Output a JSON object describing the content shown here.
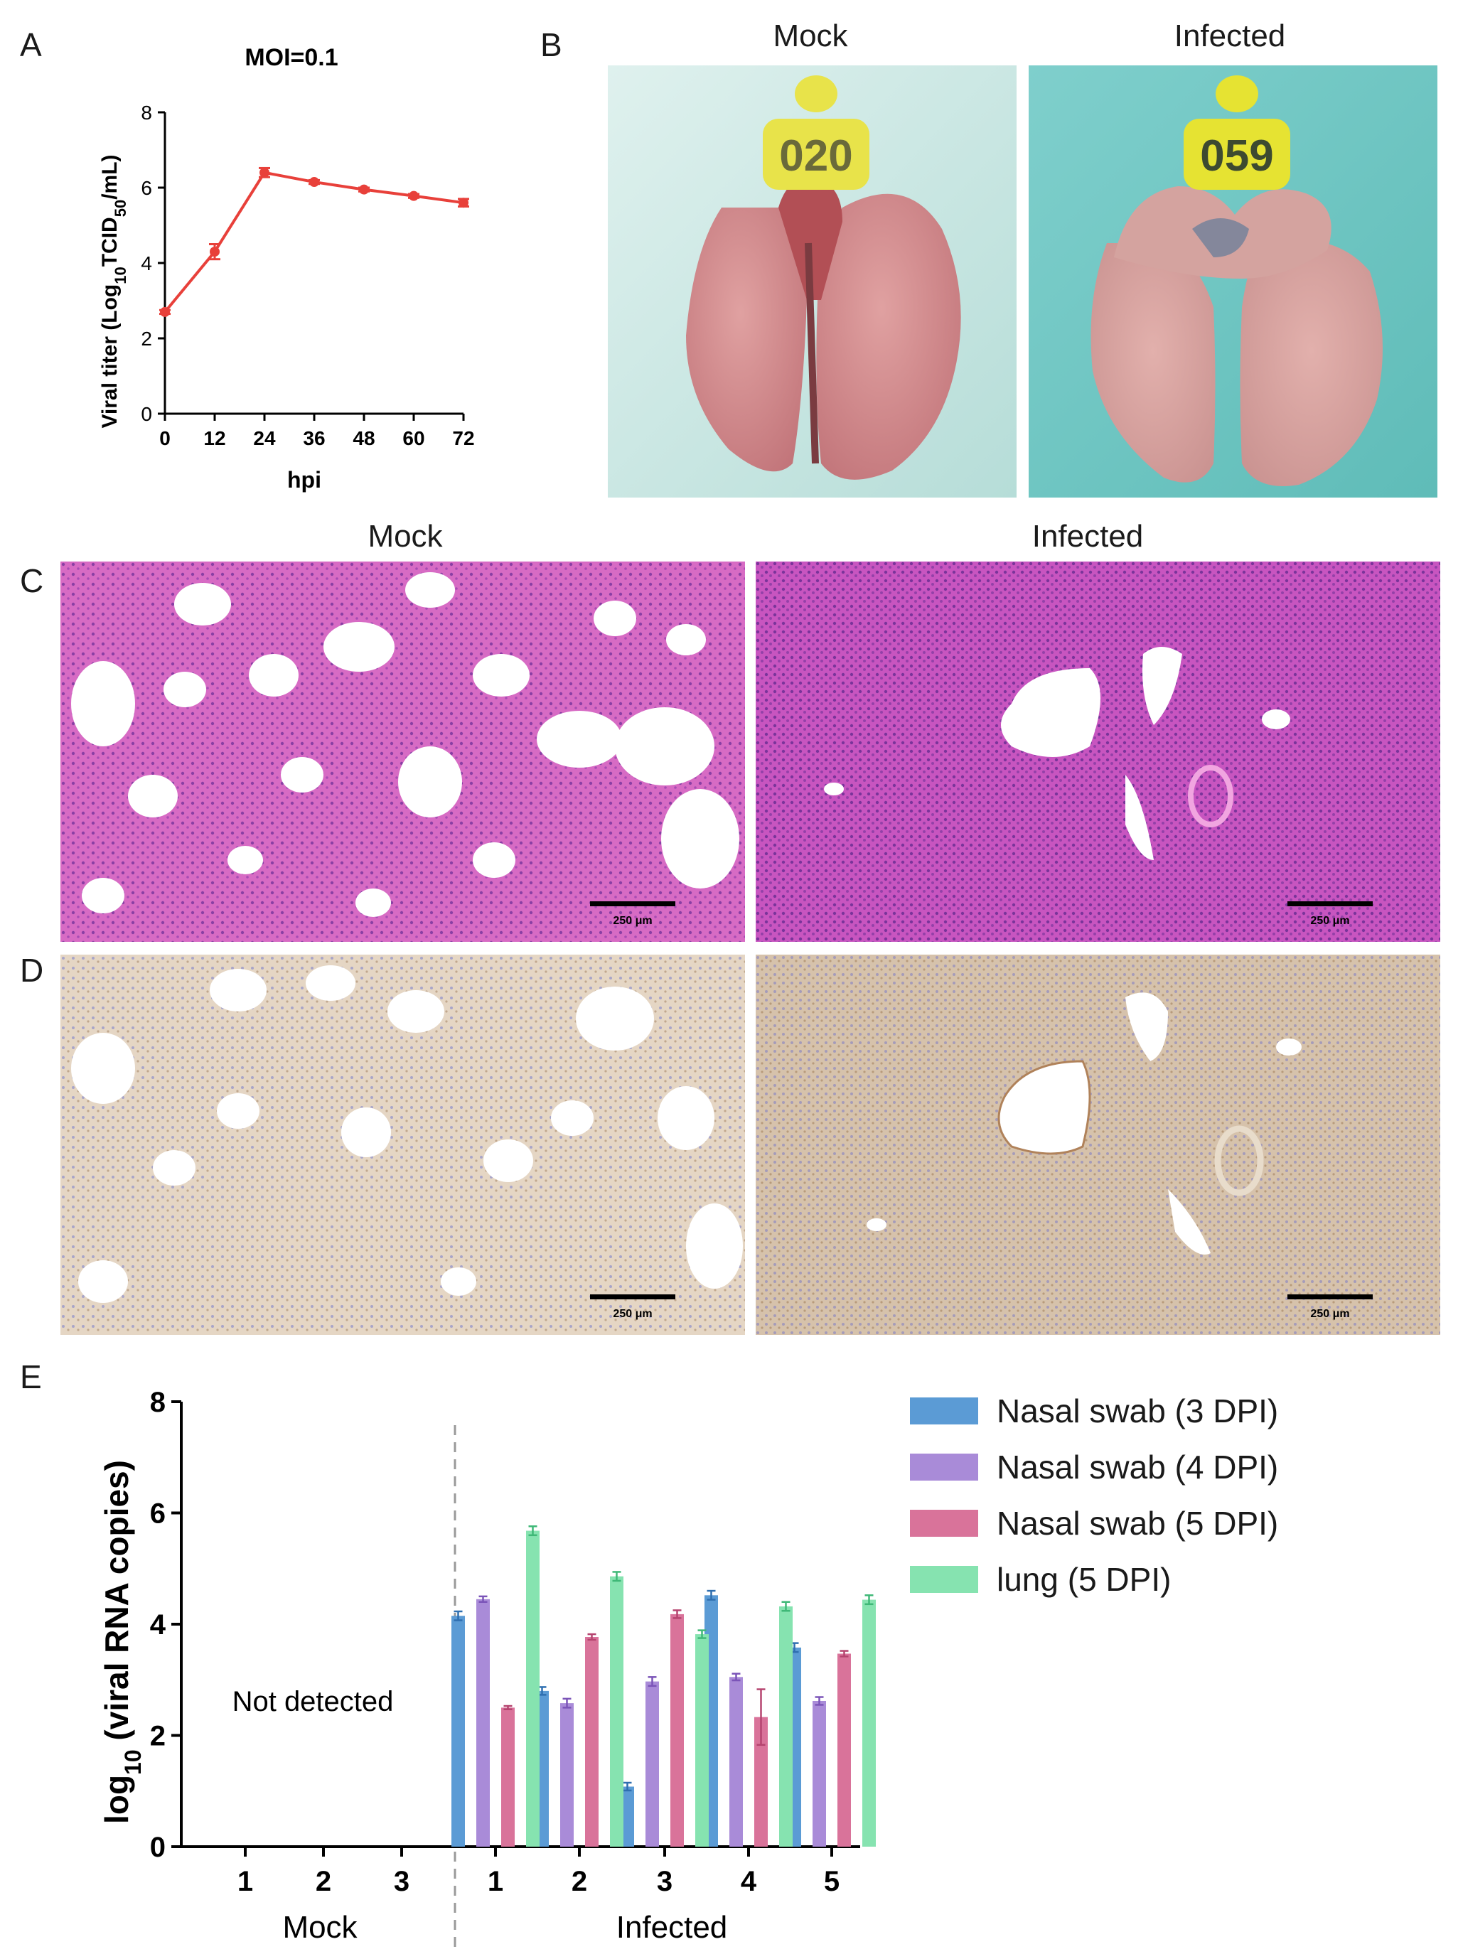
{
  "panels": {
    "a": {
      "letter": "A"
    },
    "b": {
      "letter": "B",
      "left_caption": "Mock",
      "right_caption": "Infected",
      "tag_left": "020",
      "tag_right": "059"
    },
    "c": {
      "letter": "C",
      "left_caption": "Mock",
      "right_caption": "Infected",
      "scale_label": "250 μm"
    },
    "d": {
      "letter": "D",
      "scale_label": "250 μm"
    },
    "e": {
      "letter": "E",
      "not_detected": "Not detected"
    }
  },
  "colors": {
    "line_red": "#e8403a",
    "blue": "#5b9bd5",
    "purple": "#a98bd8",
    "pink": "#d9739a",
    "green": "#86e3b0",
    "he_pink": "#d76bc4",
    "ihc_tan": "#dac6ae",
    "cyan_bg": "#a8dede"
  },
  "chart_data": [
    {
      "type": "line",
      "title": "MOI=0.1",
      "xlabel": "hpi",
      "ylabel_prefix": "Viral titer (Log",
      "ylabel_sub": "10",
      "ylabel_suffix": "TCID",
      "ylabel_sub2": "50",
      "ylabel_end": "/mL)",
      "xlim": [
        0,
        72
      ],
      "ylim": [
        0,
        8
      ],
      "x_ticks": [
        "0",
        "12",
        "24",
        "36",
        "48",
        "60",
        "72"
      ],
      "y_ticks": [
        "0",
        "2",
        "4",
        "6",
        "8"
      ],
      "x": [
        0,
        12,
        24,
        36,
        48,
        60,
        72
      ],
      "y": [
        2.7,
        4.3,
        6.4,
        6.15,
        5.95,
        5.78,
        5.6
      ],
      "err": [
        0.05,
        0.2,
        0.12,
        0.05,
        0.05,
        0.05,
        0.1
      ]
    },
    {
      "type": "bar",
      "ylabel_prefix": "log",
      "ylabel_sub": "10",
      "ylabel_suffix": " (viral RNA copies)",
      "ylim": [
        0,
        8
      ],
      "y_ticks": [
        "0",
        "2",
        "4",
        "6",
        "8"
      ],
      "group_labels": [
        "Mock",
        "Infected"
      ],
      "categories": [
        "1",
        "2",
        "3",
        "1",
        "2",
        "3",
        "4",
        "5"
      ],
      "series": [
        {
          "name": "Nasal swab (3 DPI)",
          "values": [
            null,
            null,
            null,
            4.15,
            2.8,
            1.08,
            4.52,
            3.58
          ],
          "err": [
            null,
            null,
            null,
            0.08,
            0.07,
            0.07,
            0.08,
            0.08
          ]
        },
        {
          "name": "Nasal swab (4 DPI)",
          "values": [
            null,
            null,
            null,
            4.45,
            2.58,
            2.97,
            3.05,
            2.62
          ],
          "err": [
            null,
            null,
            null,
            0.05,
            0.08,
            0.08,
            0.06,
            0.07
          ]
        },
        {
          "name": "Nasal swab (5 DPI)",
          "values": [
            null,
            null,
            null,
            2.5,
            3.77,
            4.18,
            2.33,
            3.47
          ],
          "err": [
            null,
            null,
            null,
            0.03,
            0.05,
            0.07,
            0.5,
            0.05
          ]
        },
        {
          "name": "lung (5 DPI)",
          "values": [
            null,
            null,
            null,
            5.68,
            4.86,
            3.82,
            4.32,
            4.44
          ],
          "err": [
            null,
            null,
            null,
            0.08,
            0.08,
            0.07,
            0.08,
            0.08
          ]
        }
      ]
    }
  ]
}
